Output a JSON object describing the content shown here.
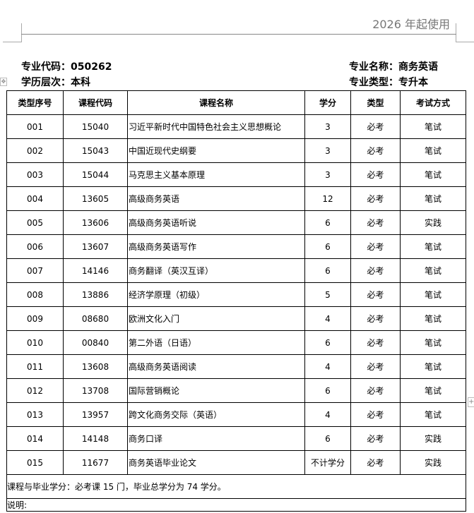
{
  "header": {
    "usage_note": "2026 年起使用"
  },
  "meta": {
    "major_code_label": "专业代码：",
    "major_code": "050262",
    "major_name_label": "专业名称：",
    "major_name": "商务英语",
    "level_label": "学历层次：",
    "level": "本科",
    "type_label": "专业类型：",
    "type": "专升本"
  },
  "table": {
    "columns": [
      "类型序号",
      "课程代码",
      "课程名称",
      "学分",
      "类型",
      "考试方式"
    ],
    "rows": [
      [
        "001",
        "15040",
        "习近平新时代中国特色社会主义思想概论",
        "3",
        "必考",
        "笔试"
      ],
      [
        "002",
        "15043",
        "中国近现代史纲要",
        "3",
        "必考",
        "笔试"
      ],
      [
        "003",
        "15044",
        "马克思主义基本原理",
        "3",
        "必考",
        "笔试"
      ],
      [
        "004",
        "13605",
        "高级商务英语",
        "12",
        "必考",
        "笔试"
      ],
      [
        "005",
        "13606",
        "高级商务英语听说",
        "6",
        "必考",
        "实践"
      ],
      [
        "006",
        "13607",
        "高级商务英语写作",
        "6",
        "必考",
        "笔试"
      ],
      [
        "007",
        "14146",
        "商务翻译（英汉互译）",
        "6",
        "必考",
        "笔试"
      ],
      [
        "008",
        "13886",
        "经济学原理（初级）",
        "5",
        "必考",
        "笔试"
      ],
      [
        "009",
        "08680",
        "欧洲文化入门",
        "4",
        "必考",
        "笔试"
      ],
      [
        "010",
        "00840",
        "第二外语（日语）",
        "6",
        "必考",
        "笔试"
      ],
      [
        "011",
        "13608",
        "高级商务英语阅读",
        "4",
        "必考",
        "笔试"
      ],
      [
        "012",
        "13708",
        "国际营销概论",
        "6",
        "必考",
        "笔试"
      ],
      [
        "013",
        "13957",
        "跨文化商务交际（英语）",
        "4",
        "必考",
        "笔试"
      ],
      [
        "014",
        "14148",
        "商务口译",
        "6",
        "必考",
        "实践"
      ],
      [
        "015",
        "11677",
        "商务英语毕业论文",
        "不计学分",
        "必考",
        "实践"
      ]
    ],
    "summary": "课程与毕业学分：必考课 15 门，毕业总学分为 74 学分。",
    "notes_label": "说明:"
  }
}
